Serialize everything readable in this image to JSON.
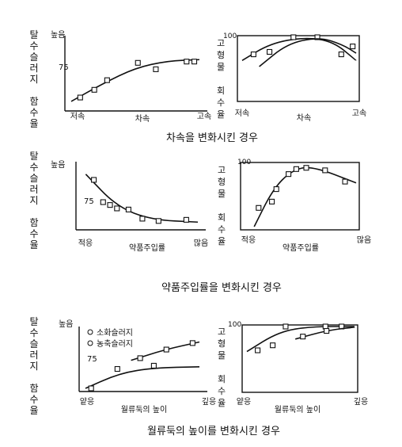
{
  "rows": [
    {
      "caption": "차속을 변화시킨 경우",
      "left": {
        "ylabel": [
          "탈",
          "수",
          "슬",
          "러",
          "지",
          "",
          "함",
          "수",
          "율"
        ],
        "y_high": "높음",
        "y_mid": "75",
        "x_low": "저속",
        "x_mid": "차속",
        "x_high": "고속"
      },
      "right": {
        "ylabel": [
          "고",
          "형",
          "물",
          "",
          "회",
          "수",
          "율"
        ],
        "y_top": "100",
        "x_low": "저속",
        "x_mid": "차속",
        "x_high": "고속"
      }
    },
    {
      "caption": "약품주입률을 변화시킨 경우",
      "left": {
        "ylabel": [
          "탈",
          "수",
          "슬",
          "러",
          "지",
          "",
          "함",
          "수",
          "율"
        ],
        "y_high": "높음",
        "y_mid": "75",
        "x_low": "적응",
        "x_mid": "약품주입률",
        "x_high": "많음"
      },
      "right": {
        "ylabel": [
          "고",
          "형",
          "물",
          "",
          "회",
          "수",
          "율"
        ],
        "y_top": "100",
        "x_low": "적응",
        "x_mid": "약품주입률",
        "x_high": "많음"
      }
    },
    {
      "caption": "월류둑의 높이를 변화시킨 경우",
      "left": {
        "ylabel": [
          "탈",
          "수",
          "슬",
          "러",
          "지",
          "",
          "함",
          "수",
          "율"
        ],
        "y_high": "높음",
        "y_mid": "75",
        "x_low": "얕응",
        "x_mid": "월류둑의 높이",
        "x_high": "깊응",
        "legend": [
          "소화슬러지",
          "농축슬러지"
        ]
      },
      "right": {
        "ylabel": [
          "고",
          "형",
          "물",
          "",
          "회",
          "수",
          "율"
        ],
        "y_top": "100",
        "x_low": "얕응",
        "x_mid": "월류둑의 높이",
        "x_high": "깊응"
      }
    }
  ],
  "chart_data": [
    {
      "type": "scatter",
      "title": "",
      "xlabel": "차속",
      "ylabel": "탈수슬러지 함수율",
      "series": [
        {
          "points": [
            [
              0.07,
              0.16
            ],
            [
              0.18,
              0.28
            ],
            [
              0.28,
              0.43
            ],
            [
              0.52,
              0.7
            ],
            [
              0.66,
              0.6
            ],
            [
              0.9,
              0.72
            ],
            [
              0.96,
              0.72
            ]
          ],
          "curve": [
            [
              0.0,
              0.1
            ],
            [
              0.25,
              0.38
            ],
            [
              0.5,
              0.62
            ],
            [
              0.75,
              0.73
            ],
            [
              1.0,
              0.75
            ]
          ]
        }
      ]
    },
    {
      "type": "scatter",
      "title": "",
      "xlabel": "차속",
      "ylabel": "고형물 회수율",
      "series": [
        {
          "points": [
            [
              0.1,
              0.72
            ],
            [
              0.24,
              0.76
            ],
            [
              0.45,
              1.0
            ],
            [
              0.66,
              1.0
            ],
            [
              0.87,
              0.72
            ],
            [
              0.97,
              0.85
            ]
          ],
          "curve": [
            [
              0.0,
              0.62
            ],
            [
              0.25,
              0.9
            ],
            [
              0.55,
              1.0
            ],
            [
              0.8,
              0.93
            ],
            [
              1.0,
              0.62
            ]
          ]
        },
        {
          "curve": [
            [
              0.15,
              0.52
            ],
            [
              0.4,
              0.9
            ],
            [
              0.68,
              1.0
            ],
            [
              0.88,
              0.88
            ],
            [
              1.0,
              0.74
            ]
          ]
        }
      ]
    },
    {
      "type": "scatter",
      "title": "",
      "xlabel": "약품주입률",
      "ylabel": "탈수슬러지 함수율",
      "series": [
        {
          "points": [
            [
              0.1,
              0.82
            ],
            [
              0.18,
              0.43
            ],
            [
              0.24,
              0.38
            ],
            [
              0.3,
              0.32
            ],
            [
              0.4,
              0.3
            ],
            [
              0.52,
              0.14
            ],
            [
              0.66,
              0.1
            ],
            [
              0.9,
              0.12
            ]
          ],
          "curve": [
            [
              0.03,
              0.92
            ],
            [
              0.3,
              0.35
            ],
            [
              0.6,
              0.12
            ],
            [
              1.0,
              0.08
            ]
          ]
        }
      ]
    },
    {
      "type": "scatter",
      "title": "",
      "xlabel": "약품주입률",
      "ylabel": "고형물 회수율",
      "series": [
        {
          "points": [
            [
              0.12,
              0.3
            ],
            [
              0.24,
              0.4
            ],
            [
              0.28,
              0.6
            ],
            [
              0.39,
              0.84
            ],
            [
              0.46,
              0.92
            ],
            [
              0.55,
              0.94
            ],
            [
              0.72,
              0.9
            ],
            [
              0.9,
              0.72
            ]
          ],
          "curve": [
            [
              0.08,
              0.0
            ],
            [
              0.25,
              0.6
            ],
            [
              0.42,
              0.9
            ],
            [
              0.6,
              0.97
            ],
            [
              1.0,
              0.7
            ]
          ]
        }
      ]
    },
    {
      "type": "scatter",
      "title": "",
      "xlabel": "월류둑의 높이",
      "ylabel": "탈수슬러지 함수율",
      "series": [
        {
          "name": "소화슬러지",
          "points": [
            [
              0.05,
              0.0
            ],
            [
              0.28,
              0.36
            ],
            [
              0.6,
              0.42
            ]
          ],
          "curve": [
            [
              0.0,
              0.0
            ],
            [
              0.3,
              0.28
            ],
            [
              0.6,
              0.38
            ],
            [
              1.0,
              0.4
            ]
          ]
        },
        {
          "name": "농축슬러지",
          "points": [
            [
              0.48,
              0.56
            ],
            [
              0.71,
              0.72
            ],
            [
              0.94,
              0.84
            ]
          ],
          "curve": [
            [
              0.4,
              0.52
            ],
            [
              0.7,
              0.72
            ],
            [
              1.0,
              0.86
            ]
          ]
        }
      ]
    },
    {
      "type": "scatter",
      "title": "",
      "xlabel": "월류둑의 높이",
      "ylabel": "고형물 회수율",
      "series": [
        {
          "points": [
            [
              0.1,
              0.62
            ],
            [
              0.24,
              0.7
            ],
            [
              0.36,
              1.0
            ],
            [
              0.73,
              1.0
            ],
            [
              0.88,
              1.0
            ]
          ],
          "curve": [
            [
              0.0,
              0.6
            ],
            [
              0.3,
              0.92
            ],
            [
              0.6,
              1.0
            ],
            [
              1.0,
              1.0
            ]
          ]
        },
        {
          "points": [
            [
              0.52,
              0.84
            ],
            [
              0.74,
              0.93
            ]
          ],
          "curve": [
            [
              0.45,
              0.8
            ],
            [
              0.75,
              0.94
            ],
            [
              1.0,
              0.99
            ]
          ]
        }
      ]
    }
  ]
}
